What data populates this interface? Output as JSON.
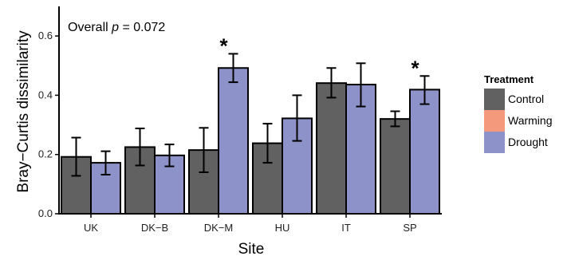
{
  "chart_data": {
    "type": "bar",
    "title": "",
    "xlabel": "Site",
    "ylabel": "Bray−Curtis dissimilarity",
    "categories": [
      "UK",
      "DK−B",
      "DK−M",
      "HU",
      "IT",
      "SP"
    ],
    "ylim": [
      0,
      0.7
    ],
    "yticks": [
      0.0,
      0.2,
      0.4,
      0.6
    ],
    "ytick_labels": [
      "0.0",
      "0.2",
      "0.4",
      "0.6"
    ],
    "grid": false,
    "legend": {
      "title": "Treatment",
      "position": "right",
      "entries": [
        {
          "name": "Control",
          "color": "#616161"
        },
        {
          "name": "Warming",
          "color": "#f4997c"
        },
        {
          "name": "Drought",
          "color": "#8d93c9"
        }
      ]
    },
    "annotation": {
      "prefix": "Overall ",
      "italic": "p",
      "suffix": " = 0.072"
    },
    "series": [
      {
        "name": "Control",
        "color": "#616161",
        "values": [
          0.192,
          0.225,
          0.215,
          0.238,
          0.441,
          0.32
        ],
        "err_low": [
          0.128,
          0.163,
          0.14,
          0.172,
          0.392,
          0.295
        ],
        "err_high": [
          0.257,
          0.288,
          0.29,
          0.304,
          0.492,
          0.346
        ]
      },
      {
        "name": "Drought",
        "color": "#8d93c9",
        "values": [
          0.172,
          0.197,
          0.492,
          0.322,
          0.436,
          0.419
        ],
        "err_low": [
          0.132,
          0.16,
          0.444,
          0.246,
          0.362,
          0.37
        ],
        "err_high": [
          0.211,
          0.234,
          0.54,
          0.4,
          0.508,
          0.465
        ]
      }
    ],
    "significance": [
      {
        "category": "DK−M",
        "series": "Drought",
        "label": "*"
      },
      {
        "category": "SP",
        "series": "Drought",
        "label": "*"
      }
    ]
  }
}
